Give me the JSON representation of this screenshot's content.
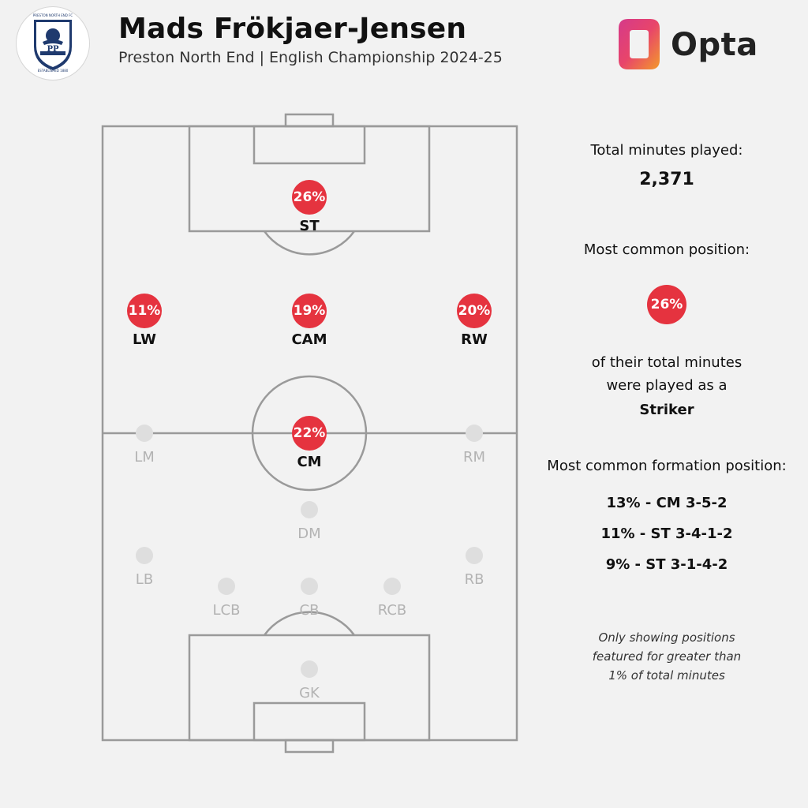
{
  "header": {
    "player_name": "Mads Frökjaer-Jensen",
    "subtitle": "Preston North End | English Championship 2024-25",
    "brand": "Opta",
    "crest": {
      "top_text": "PRESTON NORTH END FC",
      "initials": "PP",
      "bottom_text": "ESTABLISHED 1880"
    }
  },
  "colors": {
    "accent_red": "#e5333f",
    "inactive_dot": "#dedede",
    "pitch_lines": "#9a9a9a",
    "opta_gradient": [
      "#e43c74",
      "#f08a2b"
    ]
  },
  "positions": [
    {
      "code": "ST",
      "value": "26%",
      "active": true
    },
    {
      "code": "LW",
      "value": "11%",
      "active": true
    },
    {
      "code": "CAM",
      "value": "19%",
      "active": true
    },
    {
      "code": "RW",
      "value": "20%",
      "active": true
    },
    {
      "code": "LM",
      "value": null,
      "active": false
    },
    {
      "code": "CM",
      "value": "22%",
      "active": true
    },
    {
      "code": "RM",
      "value": null,
      "active": false
    },
    {
      "code": "DM",
      "value": null,
      "active": false
    },
    {
      "code": "LB",
      "value": null,
      "active": false
    },
    {
      "code": "RB",
      "value": null,
      "active": false
    },
    {
      "code": "LCB",
      "value": null,
      "active": false
    },
    {
      "code": "CB",
      "value": null,
      "active": false
    },
    {
      "code": "RCB",
      "value": null,
      "active": false
    },
    {
      "code": "GK",
      "value": null,
      "active": false
    }
  ],
  "stats": {
    "total_minutes_label": "Total minutes played:",
    "total_minutes_value": "2,371",
    "common_position_label": "Most common position:",
    "common_position_value": "26%",
    "common_position_desc_1": "of their total minutes",
    "common_position_desc_2": "were played as a",
    "common_position_name": "Striker",
    "formation_label": "Most common formation position:",
    "formation_items": [
      "13% - CM 3-5-2",
      "11% - ST 3-4-1-2",
      "9% - ST 3-1-4-2"
    ],
    "note_1": "Only showing positions",
    "note_2": "featured for greater than",
    "note_3": "1% of total minutes"
  }
}
